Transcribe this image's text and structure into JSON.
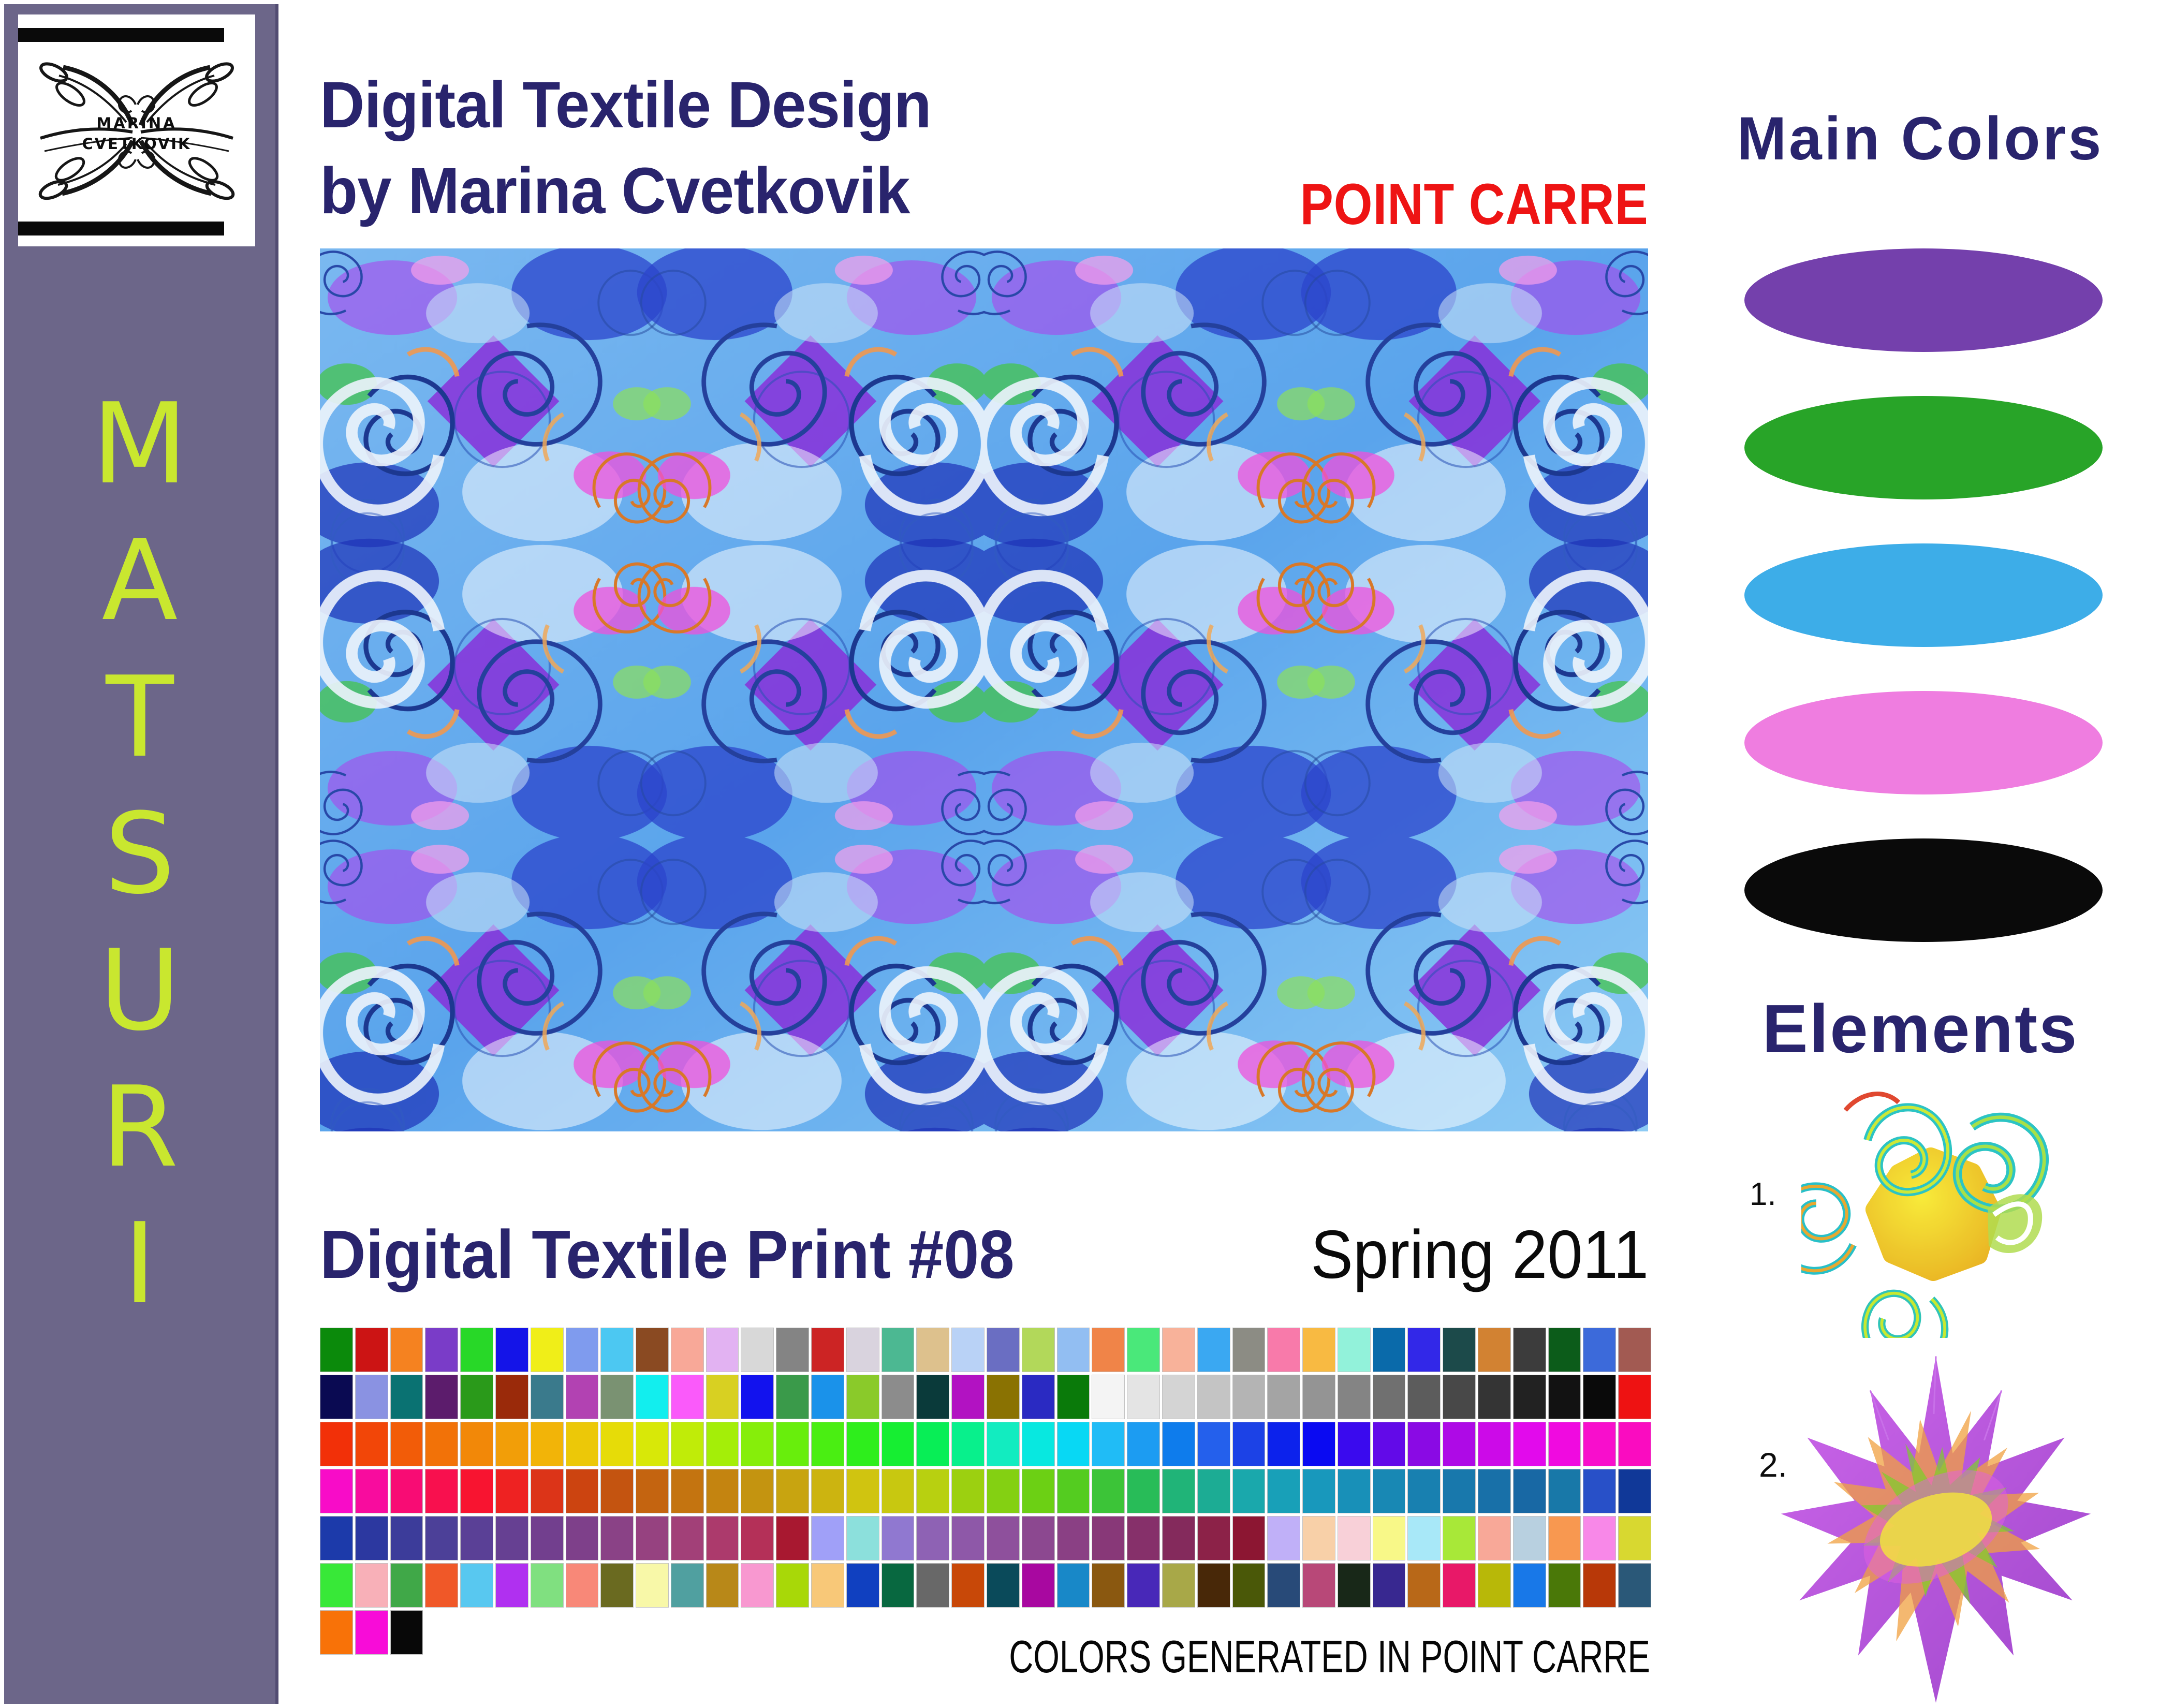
{
  "sidebar": {
    "logo": {
      "line1": "MARINA",
      "line2": "CVETKOVIK"
    },
    "brand_letters": [
      "M",
      "A",
      "T",
      "S",
      "U",
      "R",
      "I"
    ]
  },
  "header": {
    "title_line1": "Digital Textile Design",
    "title_line2": "by Marina Cvetkovik",
    "software_brand": "POINT CARRE"
  },
  "artwork": {
    "caption": "Digital Textile Print #08",
    "season": "Spring 2011",
    "footnote": "COLORS GENERATED IN POINT CARRE"
  },
  "main_colors": {
    "heading": "Main Colors",
    "swatches": [
      {
        "name": "purple",
        "hex": "#7440ac"
      },
      {
        "name": "green",
        "hex": "#28a428"
      },
      {
        "name": "blue",
        "hex": "#3dade8"
      },
      {
        "name": "pink",
        "hex": "#ef7de0"
      },
      {
        "name": "black",
        "hex": "#0a0a0a"
      }
    ]
  },
  "elements": {
    "heading": "Elements",
    "items": [
      {
        "label": "1."
      },
      {
        "label": "2."
      }
    ]
  },
  "palette": {
    "rows": [
      [
        "#0b8a0b",
        "#cc1414",
        "#f58220",
        "#7a3cc8",
        "#28d828",
        "#1414e8",
        "#f0ee18",
        "#7f9bee",
        "#4cc8f2",
        "#8a4a22",
        "#f8a898",
        "#e2b2f2",
        "#d8d8d8",
        "#848484",
        "#cc2424",
        "#d9d3de",
        "#4cb892",
        "#ddc18d",
        "#b9d2f6",
        "#6a6ec2",
        "#b2d85a",
        "#92bef2",
        "#f08448",
        "#4ae87a",
        "#f8b29a",
        "#3aa8f2",
        "#8c8c84",
        "#f87aaa",
        "#f8ba42",
        "#92f2da",
        "#0a6aaa",
        "#3228e8",
        "#1c4a4a",
        "#d28232",
        "#3c3c3c",
        "#0c5c1a",
        "#3c6ada",
        "#a25a52"
      ],
      [
        "#0a0a52",
        "#8a92e2",
        "#0a7272",
        "#5c1c6c",
        "#2a9a1a",
        "#9a2a0a",
        "#3a7a8c",
        "#b242b2",
        "#7a9272",
        "#12eeee",
        "#fa5afa",
        "#d8d022",
        "#1212ee",
        "#3a9a4a",
        "#1a92ea",
        "#8aca2a",
        "#8c8c8c",
        "#0a3a3a",
        "#b212c2",
        "#8a7202",
        "#2a2ac2",
        "#0a7a0a",
        "#f4f4f4",
        "#e4e4e4",
        "#d4d4d4",
        "#c4c4c4",
        "#b4b4b4",
        "#a4a4a4",
        "#949494",
        "#848484",
        "#707070",
        "#5c5c5c",
        "#484848",
        "#343434",
        "#222222",
        "#121212",
        "#0a0a0a",
        "#ee1212"
      ],
      [
        "#f23008",
        "#f24608",
        "#f25c08",
        "#f27208",
        "#f28808",
        "#f29e08",
        "#f2b408",
        "#ecc808",
        "#e6dc08",
        "#d8e808",
        "#c0ec08",
        "#a4ee08",
        "#86ee0a",
        "#68ee0c",
        "#4aee12",
        "#2eee1c",
        "#16ee32",
        "#08ee56",
        "#08f08c",
        "#12ecc0",
        "#08e8e0",
        "#08d8f4",
        "#20bcf6",
        "#1c9cf2",
        "#0e7cec",
        "#2460ec",
        "#1c42e6",
        "#0c22ec",
        "#0a0af2",
        "#3a0aee",
        "#620ae8",
        "#8a0ae4",
        "#ae0ae6",
        "#cc0ae8",
        "#e20aec",
        "#f00ae0",
        "#f80ecc",
        "#fa0cc0"
      ],
      [
        "#f80cc8",
        "#f80c9e",
        "#f80c74",
        "#f8104e",
        "#f81430",
        "#ee2222",
        "#dc3418",
        "#cc4410",
        "#c45410",
        "#c46410",
        "#c47410",
        "#c48410",
        "#c49410",
        "#c8a410",
        "#ccb410",
        "#d0c410",
        "#c8c810",
        "#b8d010",
        "#9cd010",
        "#84d012",
        "#6cd014",
        "#54cc20",
        "#3cc438",
        "#28bc58",
        "#20b478",
        "#1cac94",
        "#1aa8ac",
        "#18a0b8",
        "#1898bc",
        "#1890b8",
        "#1888b4",
        "#1880b0",
        "#1878ac",
        "#1870a8",
        "#1868a4",
        "#1878a8",
        "#2850c8",
        "#103898"
      ],
      [
        "#1c3aaa",
        "#2c38a0",
        "#3c3c9a",
        "#4c4098",
        "#5a4096",
        "#664092",
        "#723f8e",
        "#7e408a",
        "#8a4286",
        "#964280",
        "#a24078",
        "#ac3a6c",
        "#b43058",
        "#a81830",
        "#a0a0f8",
        "#8ce0dc",
        "#9078d0",
        "#8e62b4",
        "#8e58a8",
        "#8e509c",
        "#8c4890",
        "#8a4084",
        "#883878",
        "#86306a",
        "#842a5c",
        "#8c2248",
        "#8c1632",
        "#c0b0f8",
        "#f8d0a8",
        "#f8d0d8",
        "#f8f888",
        "#a8e8f8",
        "#a8e838",
        "#f8a898",
        "#b8d0e0",
        "#f89850",
        "#f888e8",
        "#d8d830"
      ],
      [
        "#38e838",
        "#f8b0b8",
        "#40a848",
        "#f05828",
        "#58c8f0",
        "#b030f0",
        "#80e080",
        "#f88878",
        "#6a6a20",
        "#f8f8a8",
        "#50a0a0",
        "#b88818",
        "#f898d0",
        "#a8d808",
        "#f8c878",
        "#1040c0",
        "#086840",
        "#686868",
        "#c84808",
        "#0a4a5a",
        "#a808a0",
        "#1888c8",
        "#8a5810",
        "#4828b8",
        "#a8a848",
        "#482808",
        "#4a5808",
        "#284a78",
        "#b84878",
        "#182818",
        "#382890",
        "#b86818",
        "#e81868",
        "#b8b808",
        "#1878e8",
        "#4a7808",
        "#b83808",
        "#2a5878"
      ],
      [
        "#f87208",
        "#f80cd8",
        "#080808"
      ]
    ]
  },
  "colors": {
    "sidebar_bg": "#6c6689",
    "sidebar_edge": "#524c72",
    "letters": "#c9e72f",
    "navy": "#29246d",
    "red": "#ee1414"
  }
}
